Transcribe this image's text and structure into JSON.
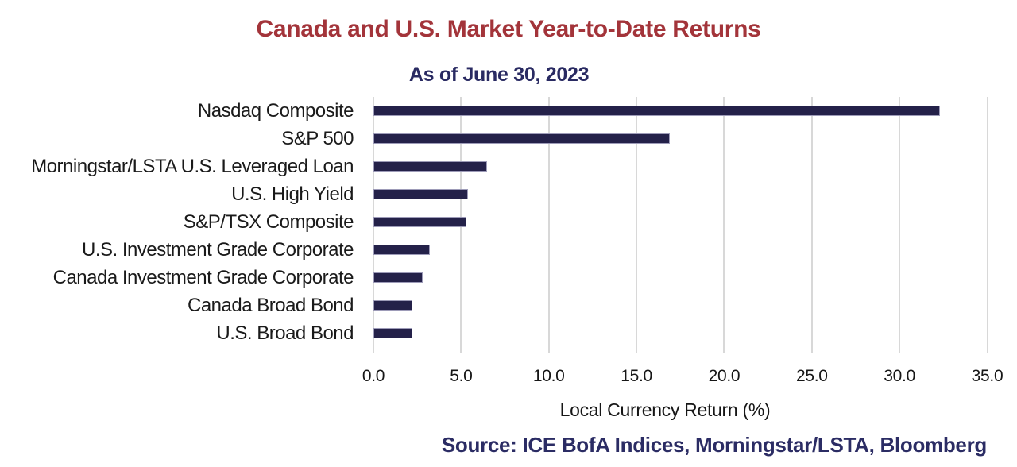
{
  "header": {
    "title": "Canada and U.S. Market Year-to-Date Returns",
    "subtitle": "As of June 30, 2023"
  },
  "chart_data": {
    "type": "bar",
    "orientation": "horizontal",
    "title": "Canada and U.S. Market Year-to-Date Returns",
    "subtitle": "As of June 30, 2023",
    "categories": [
      "Nasdaq Composite",
      "S&P 500",
      "Morningstar/LSTA U.S. Leveraged Loan",
      "U.S. High Yield",
      "S&P/TSX Composite",
      "U.S. Investment Grade Corporate",
      "Canada Investment Grade Corporate",
      "Canada Broad Bond",
      "U.S. Broad Bond"
    ],
    "values": [
      32.3,
      16.9,
      6.5,
      5.4,
      5.3,
      3.2,
      2.8,
      2.2,
      2.2
    ],
    "xlabel": "Local Currency Return (%)",
    "ylabel": "",
    "xlim": [
      0,
      35
    ],
    "xticks": [
      0,
      5,
      10,
      15,
      20,
      25,
      30,
      35
    ],
    "xtick_labels": [
      "0.0",
      "5.0",
      "10.0",
      "15.0",
      "20.0",
      "25.0",
      "30.0",
      "35.0"
    ],
    "grid": "vertical",
    "legend": false,
    "source": "Source: ICE BofA Indices, Morningstar/LSTA, Bloomberg",
    "colors": {
      "bar_fill": "#242149",
      "bar_border": "#9D9BB8",
      "grid": "#D8D8D8",
      "title": "#A3343A",
      "subtitle": "#292A62",
      "source": "#2B2C64",
      "text": "#1A1A1A"
    }
  }
}
